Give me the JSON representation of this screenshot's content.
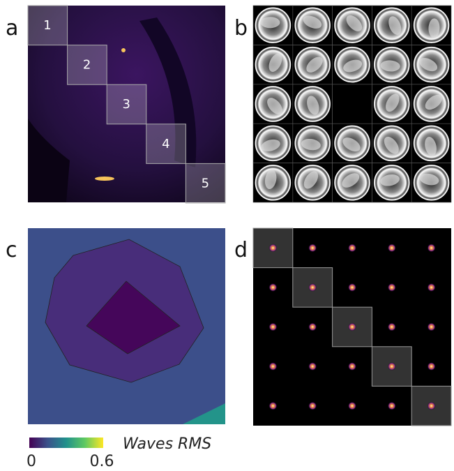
{
  "panels": [
    {
      "label": "a",
      "regions": [
        "1",
        "2",
        "3",
        "4",
        "5"
      ]
    },
    {
      "label": "b"
    },
    {
      "label": "c",
      "colorbar": {
        "title": "Waves RMS",
        "ticks": [
          0,
          0.6
        ]
      }
    },
    {
      "label": "d"
    }
  ]
}
